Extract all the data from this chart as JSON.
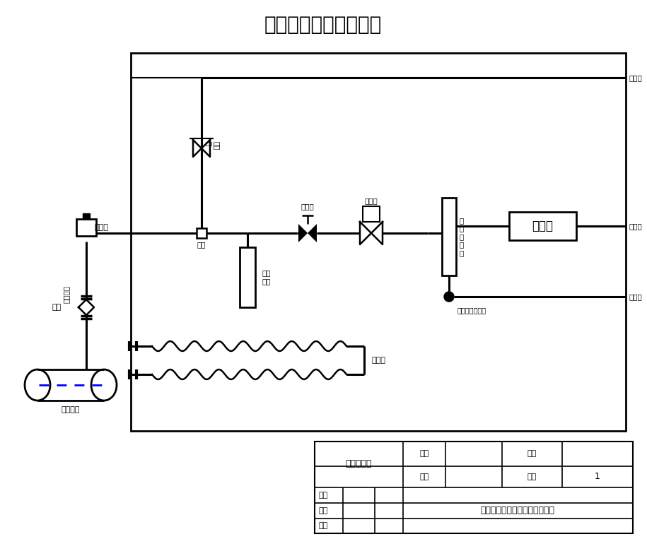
{
  "title": "氢气精制过程分析系统",
  "title_color": "#000000",
  "bg_color": "#ffffff",
  "line_color": "#000000",
  "fig_width": 9.15,
  "fig_height": 7.63,
  "table_labels": {
    "system_name": "系统气路图",
    "tu_hao": "图号",
    "bi_li": "比例",
    "cai_liao": "材料",
    "shu_liang": "数量",
    "shu_liang_val": "1",
    "she_ji": "设计",
    "hui_tu": "绘图",
    "shen_yue": "审阅",
    "company": "西安赢润环保科技集团有限公司"
  },
  "labels": {
    "gong_yi_guan_dao": "工艺管道",
    "qu_yang_tan_tou": "取样探头",
    "qiu_fa": "球阀",
    "yang_qi_kou": "样气口",
    "san_tong": "三通",
    "ju_shui_qi": "聚结\n滤器",
    "jie_zhi_fa": "截止阀",
    "jian_ya_fa": "减压阀",
    "fang_kong_fa": "放空\n阀",
    "yang_qi_liu_liang_ji": "样\n气\n流\n量\n计",
    "yang_qi_biao_qi_qie_huan_fa": "样气标气切换阀",
    "fen_xi_yi": "分析仪",
    "fang_kong_kou": "放空口",
    "pai_kong_kou": "排空口",
    "biao_jiao_kou": "标校口",
    "dian_ban_re": "电伴热"
  }
}
